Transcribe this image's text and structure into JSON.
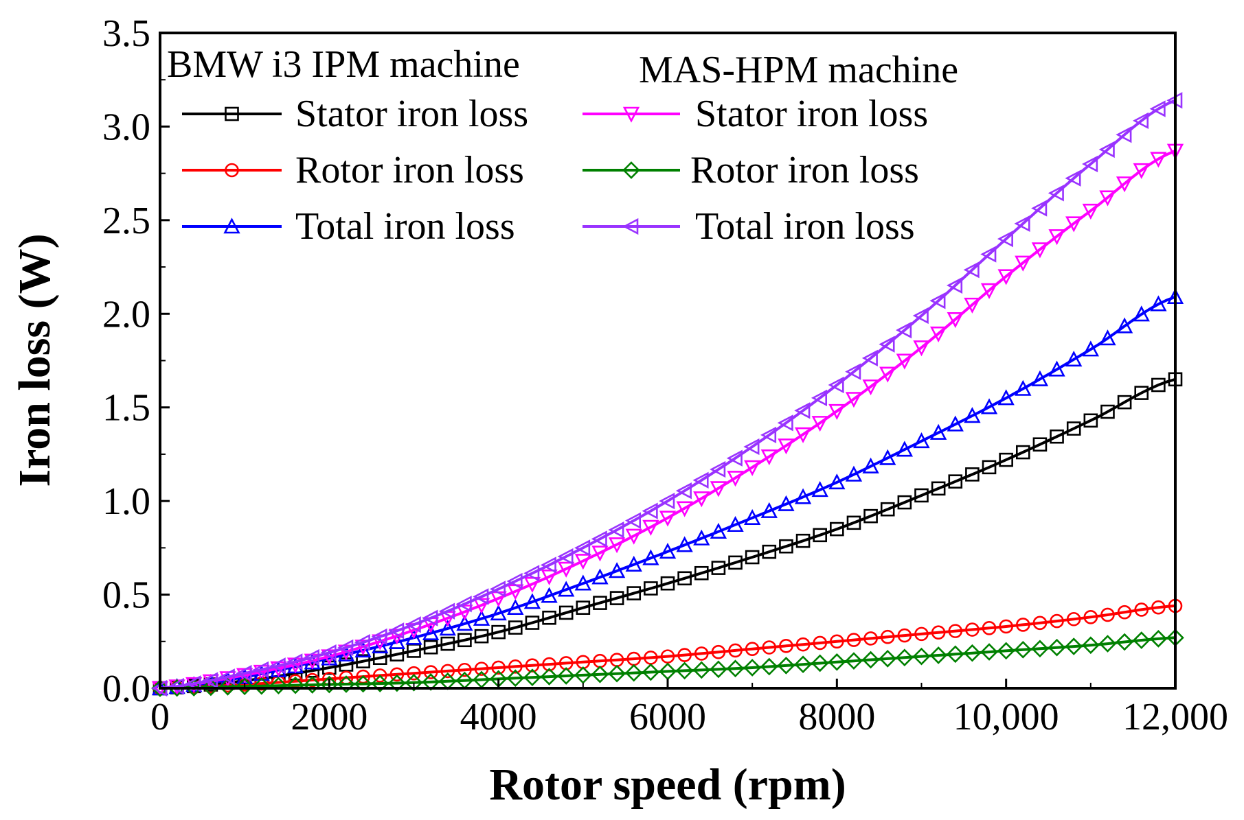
{
  "chart_data": {
    "type": "line",
    "title": "",
    "xlabel": "Rotor speed (rpm)",
    "ylabel": "Iron loss (W)",
    "xlim": [
      0,
      12000
    ],
    "ylim": [
      0,
      3.5
    ],
    "x_ticks": [
      0,
      2000,
      4000,
      6000,
      8000,
      10000,
      12000
    ],
    "x_tick_labels": [
      "0",
      "2000",
      "4000",
      "6000",
      "8000",
      "10,000",
      "12,000"
    ],
    "y_ticks": [
      0,
      0.5,
      1.0,
      1.5,
      2.0,
      2.5,
      3.0,
      3.5
    ],
    "y_tick_labels": [
      "0.0",
      "0.5",
      "1.0",
      "1.5",
      "2.0",
      "2.5",
      "3.0",
      "3.5"
    ],
    "grid": false,
    "legend_groups": [
      "BMW i3 IPM machine",
      "MAS-HPM machine"
    ],
    "x": [
      0,
      1000,
      2000,
      3000,
      4000,
      5000,
      6000,
      7000,
      8000,
      9000,
      10000,
      11000,
      12000
    ],
    "series": [
      {
        "name": "Stator iron loss",
        "group": "BMW i3 IPM machine",
        "color": "#000000",
        "marker": "square",
        "values": [
          0.0,
          0.04,
          0.11,
          0.2,
          0.3,
          0.43,
          0.56,
          0.7,
          0.85,
          1.03,
          1.22,
          1.43,
          1.65
        ]
      },
      {
        "name": "Rotor iron loss",
        "group": "BMW i3 IPM machine",
        "color": "#ff0000",
        "marker": "circle",
        "values": [
          0.0,
          0.02,
          0.05,
          0.08,
          0.11,
          0.14,
          0.17,
          0.21,
          0.25,
          0.29,
          0.33,
          0.38,
          0.44
        ]
      },
      {
        "name": "Total iron loss",
        "group": "BMW i3 IPM machine",
        "color": "#0000ff",
        "marker": "triangle-up",
        "values": [
          0.0,
          0.06,
          0.16,
          0.27,
          0.4,
          0.56,
          0.73,
          0.91,
          1.1,
          1.32,
          1.55,
          1.81,
          2.09
        ]
      },
      {
        "name": "Stator iron loss",
        "group": "MAS-HPM machine",
        "color": "#ff00ff",
        "marker": "triangle-down",
        "values": [
          0.0,
          0.07,
          0.17,
          0.31,
          0.48,
          0.68,
          0.91,
          1.18,
          1.48,
          1.82,
          2.2,
          2.55,
          2.87
        ]
      },
      {
        "name": "Rotor iron loss",
        "group": "MAS-HPM machine",
        "color": "#008000",
        "marker": "diamond",
        "values": [
          0.0,
          0.01,
          0.02,
          0.03,
          0.05,
          0.07,
          0.09,
          0.11,
          0.14,
          0.17,
          0.2,
          0.23,
          0.27
        ]
      },
      {
        "name": "Total iron loss",
        "group": "MAS-HPM machine",
        "color": "#9933ff",
        "marker": "triangle-left",
        "values": [
          0.0,
          0.08,
          0.19,
          0.34,
          0.53,
          0.75,
          1.0,
          1.29,
          1.62,
          1.99,
          2.4,
          2.8,
          3.14
        ]
      }
    ]
  }
}
